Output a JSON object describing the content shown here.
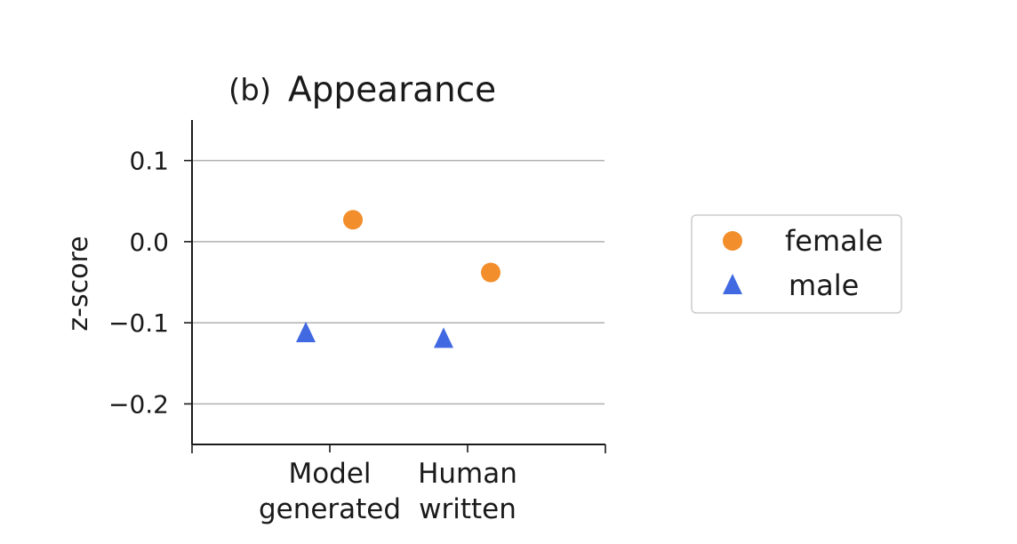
{
  "chart_data": {
    "type": "scatter",
    "title_prefix": "(b)",
    "title": "Appearance",
    "xlabel": "",
    "ylabel": "z-score",
    "categories": [
      "Model\ngenerated",
      "Human\nwritten"
    ],
    "ylim": [
      -0.25,
      0.15
    ],
    "yticks": [
      0.1,
      0.0,
      -0.1,
      -0.2
    ],
    "ytick_labels": [
      "0.1",
      "0.0",
      "−0.1",
      "−0.2"
    ],
    "grid": "horizontal",
    "legend_placement": "right, outside plot",
    "series": [
      {
        "name": "female",
        "marker": "circle",
        "color": "#f28e2b",
        "values": [
          0.027,
          -0.038
        ]
      },
      {
        "name": "male",
        "marker": "triangle",
        "color": "#4169e1",
        "values": [
          -0.113,
          -0.12
        ]
      }
    ]
  }
}
